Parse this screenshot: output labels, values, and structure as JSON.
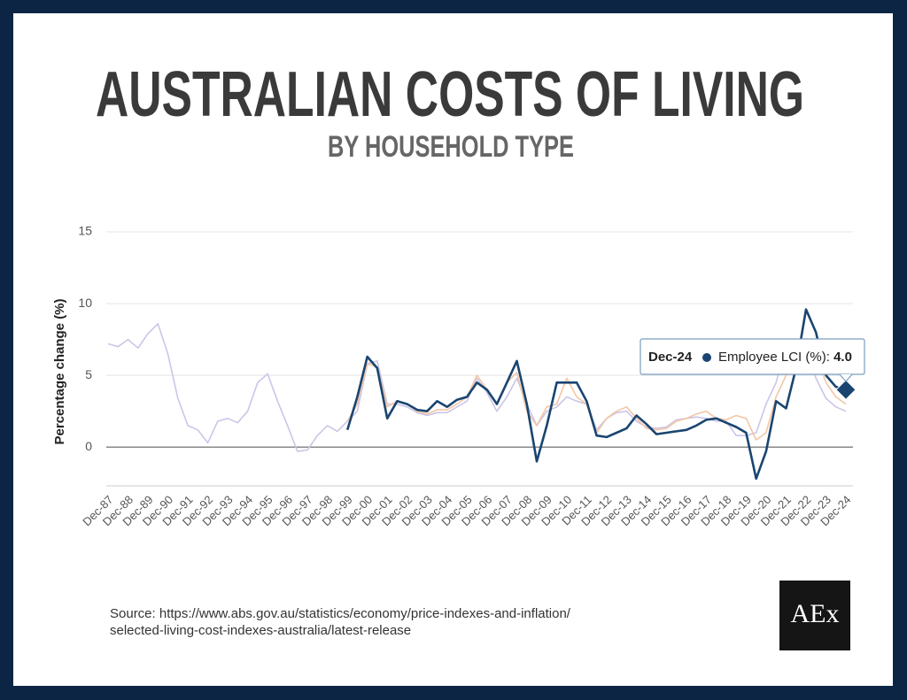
{
  "chart_data": {
    "type": "line",
    "title": "AUSTRALIAN COSTS OF LIVING",
    "subtitle": "BY HOUSEHOLD TYPE",
    "y_label": "Percentage change (%)",
    "source": [
      "Source: https://www.abs.gov.au/statistics/economy/price-indexes-and-inflation/",
      "selected-living-cost-indexes-australia/latest-release"
    ],
    "logo": "AEx",
    "categories": [
      "Dec-87",
      null,
      "Dec-88",
      null,
      "Dec-89",
      null,
      "Dec-90",
      null,
      "Dec-91",
      null,
      "Dec-92",
      null,
      "Dec-93",
      null,
      "Dec-94",
      null,
      "Dec-95",
      null,
      "Dec-96",
      null,
      "Dec-97",
      null,
      "Dec-98",
      null,
      "Dec-99",
      null,
      "Dec-00",
      null,
      "Dec-01",
      null,
      "Dec-02",
      null,
      "Dec-03",
      null,
      "Dec-04",
      null,
      "Dec-05",
      null,
      "Dec-06",
      null,
      "Dec-07",
      null,
      "Dec-08",
      null,
      "Dec-09",
      null,
      "Dec-10",
      null,
      "Dec-11",
      null,
      "Dec-12",
      null,
      "Dec-13",
      null,
      "Dec-14",
      null,
      "Dec-15",
      null,
      "Dec-16",
      null,
      "Dec-17",
      null,
      "Dec-18",
      null,
      "Dec-19",
      null,
      "Dec-20",
      null,
      "Dec-21",
      null,
      "Dec-22",
      null,
      "Dec-23",
      null,
      "Dec-24"
    ],
    "series": [
      {
        "color": "#cbc5e8",
        "values": [
          7.2,
          7.0,
          7.5,
          6.9,
          7.9,
          8.6,
          6.5,
          3.4,
          1.5,
          1.2,
          0.3,
          1.8,
          2.0,
          1.7,
          2.5,
          4.5,
          5.1,
          3.2,
          1.5,
          -0.3,
          -0.2,
          0.8,
          1.5,
          1.1,
          1.8,
          2.5,
          5.8,
          6.0,
          3.0,
          3.0,
          2.8,
          2.4,
          2.2,
          2.4,
          2.4,
          2.8,
          3.2,
          4.8,
          3.8,
          2.5,
          3.5,
          4.8,
          3.0,
          1.5,
          2.5,
          2.8,
          3.5,
          3.2,
          3.0,
          1.2,
          2.0,
          2.4,
          2.5,
          1.8,
          1.4,
          1.3,
          1.4,
          1.9,
          2.0,
          2.1,
          2.0,
          1.8,
          1.8,
          0.8,
          0.8,
          1.0,
          3.0,
          4.5,
          7.2,
          7.5,
          7.0,
          4.8,
          3.4,
          2.8,
          2.5
        ]
      },
      {
        "color": "#f3c6a6",
        "values": [
          null,
          null,
          null,
          null,
          null,
          null,
          null,
          null,
          null,
          null,
          null,
          null,
          null,
          null,
          null,
          null,
          null,
          null,
          null,
          null,
          null,
          null,
          null,
          null,
          1.8,
          3.0,
          5.8,
          5.6,
          2.8,
          3.2,
          3.0,
          2.5,
          2.3,
          2.6,
          2.6,
          3.0,
          3.5,
          5.0,
          4.0,
          3.0,
          4.5,
          5.2,
          2.5,
          1.5,
          2.8,
          3.0,
          4.8,
          3.5,
          3.0,
          1.0,
          2.0,
          2.5,
          2.8,
          2.0,
          1.3,
          1.2,
          1.3,
          1.8,
          2.0,
          2.3,
          2.5,
          2.0,
          1.9,
          2.2,
          2.0,
          0.5,
          1.0,
          3.5,
          5.0,
          7.5,
          7.5,
          6.5,
          4.5,
          3.5,
          3.0
        ]
      },
      {
        "name": "Employee LCI (%)",
        "color": "#1a4570",
        "values": [
          null,
          null,
          null,
          null,
          null,
          null,
          null,
          null,
          null,
          null,
          null,
          null,
          null,
          null,
          null,
          null,
          null,
          null,
          null,
          null,
          null,
          null,
          null,
          null,
          1.2,
          3.5,
          6.3,
          5.5,
          2.0,
          3.2,
          3.0,
          2.6,
          2.5,
          3.2,
          2.8,
          3.3,
          3.5,
          4.5,
          4.0,
          3.0,
          4.5,
          6.0,
          3.0,
          -1.0,
          1.5,
          4.5,
          4.5,
          4.5,
          3.2,
          0.8,
          0.7,
          1.0,
          1.3,
          2.2,
          1.6,
          0.9,
          1.0,
          1.1,
          1.2,
          1.5,
          1.9,
          2.0,
          1.7,
          1.4,
          1.0,
          -2.2,
          -0.3,
          3.2,
          2.7,
          5.5,
          9.6,
          8.0,
          5.0,
          4.2,
          4.0
        ],
        "value_labels": [
          null,
          null,
          null,
          null,
          null,
          null,
          null,
          null,
          null,
          null,
          null,
          null,
          null,
          null,
          null,
          null,
          null,
          null,
          null,
          null,
          null,
          null,
          null,
          null,
          null,
          null,
          null,
          null,
          null,
          null,
          null,
          null,
          null,
          null,
          null,
          null,
          null,
          null,
          null,
          null,
          null,
          null,
          null,
          null,
          null,
          null,
          null,
          null,
          null,
          null,
          null,
          null,
          null,
          null,
          null,
          null,
          null,
          null,
          null,
          null,
          null,
          null,
          null,
          null,
          null,
          null,
          null,
          null,
          null,
          null,
          null,
          null,
          null,
          null,
          "4.0"
        ]
      }
    ],
    "ylim": [
      -2.7,
      15
    ],
    "yticks": [
      0,
      5,
      10,
      15
    ],
    "grid": true,
    "tooltip_index": 74,
    "tooltip_series": 2
  }
}
